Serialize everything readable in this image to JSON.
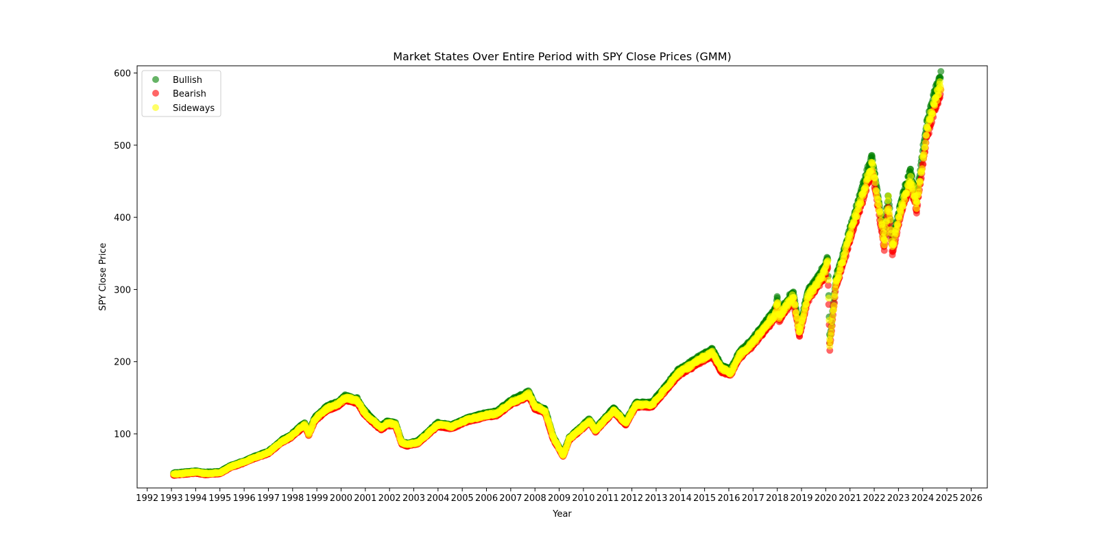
{
  "chart_data": {
    "type": "scatter",
    "title": "Market States Over Entire Period with SPY Close Prices (GMM)",
    "xlabel": "Year",
    "ylabel": "SPY Close Price",
    "xlim": [
      "1991-08-01",
      "2026-09-01"
    ],
    "ylim": [
      25,
      610
    ],
    "x_ticks": [
      "1992",
      "1993",
      "1994",
      "1995",
      "1996",
      "1997",
      "1998",
      "1999",
      "2000",
      "2001",
      "2002",
      "2003",
      "2004",
      "2005",
      "2006",
      "2007",
      "2008",
      "2009",
      "2010",
      "2011",
      "2012",
      "2013",
      "2014",
      "2015",
      "2016",
      "2017",
      "2018",
      "2019",
      "2020",
      "2021",
      "2022",
      "2023",
      "2024",
      "2025",
      "2026"
    ],
    "y_ticks": [
      100,
      200,
      300,
      400,
      500,
      600
    ],
    "grid": false,
    "legend_position": "top-left",
    "colors": {
      "Bullish": "#008000",
      "Bearish": "#ff0000",
      "Sideways": "#ffff00"
    },
    "point_alpha": 0.6,
    "price_path": [
      [
        "1993-02",
        44
      ],
      [
        "1993-06",
        45
      ],
      [
        "1994-01",
        47
      ],
      [
        "1994-06",
        45
      ],
      [
        "1995-01",
        46
      ],
      [
        "1995-06",
        54
      ],
      [
        "1996-01",
        61
      ],
      [
        "1996-06",
        67
      ],
      [
        "1997-01",
        74
      ],
      [
        "1997-08",
        90
      ],
      [
        "1997-12",
        96
      ],
      [
        "1998-07",
        113
      ],
      [
        "1998-09",
        100
      ],
      [
        "1998-12",
        120
      ],
      [
        "1999-06",
        135
      ],
      [
        "1999-12",
        142
      ],
      [
        "2000-03",
        150
      ],
      [
        "2000-09",
        146
      ],
      [
        "2000-12",
        132
      ],
      [
        "2001-04",
        120
      ],
      [
        "2001-09",
        108
      ],
      [
        "2001-12",
        115
      ],
      [
        "2002-04",
        113
      ],
      [
        "2002-07",
        88
      ],
      [
        "2002-10",
        85
      ],
      [
        "2003-03",
        88
      ],
      [
        "2003-09",
        103
      ],
      [
        "2004-01",
        113
      ],
      [
        "2004-08",
        110
      ],
      [
        "2005-03",
        119
      ],
      [
        "2006-01",
        126
      ],
      [
        "2006-06",
        128
      ],
      [
        "2007-01",
        143
      ],
      [
        "2007-10",
        155
      ],
      [
        "2008-01",
        138
      ],
      [
        "2008-06",
        132
      ],
      [
        "2008-10",
        95
      ],
      [
        "2009-03",
        70
      ],
      [
        "2009-06",
        93
      ],
      [
        "2010-04",
        118
      ],
      [
        "2010-07",
        105
      ],
      [
        "2011-04",
        133
      ],
      [
        "2011-10",
        115
      ],
      [
        "2012-03",
        140
      ],
      [
        "2012-11",
        140
      ],
      [
        "2013-12",
        184
      ],
      [
        "2014-12",
        205
      ],
      [
        "2015-05",
        212
      ],
      [
        "2015-09",
        192
      ],
      [
        "2016-02",
        185
      ],
      [
        "2016-06",
        208
      ],
      [
        "2017-01",
        227
      ],
      [
        "2017-12",
        266
      ],
      [
        "2018-01",
        284
      ],
      [
        "2018-02",
        263
      ],
      [
        "2018-09",
        291
      ],
      [
        "2018-12",
        240
      ],
      [
        "2019-04",
        290
      ],
      [
        "2019-12",
        322
      ],
      [
        "2020-02",
        338
      ],
      [
        "2020-03",
        222
      ],
      [
        "2020-06",
        308
      ],
      [
        "2021-01",
        375
      ],
      [
        "2021-12",
        475
      ],
      [
        "2022-06",
        365
      ],
      [
        "2022-08",
        425
      ],
      [
        "2022-10",
        357
      ],
      [
        "2023-02",
        410
      ],
      [
        "2023-07",
        455
      ],
      [
        "2023-10",
        418
      ],
      [
        "2024-03",
        520
      ],
      [
        "2024-07",
        560
      ],
      [
        "2024-10",
        584
      ]
    ]
  }
}
